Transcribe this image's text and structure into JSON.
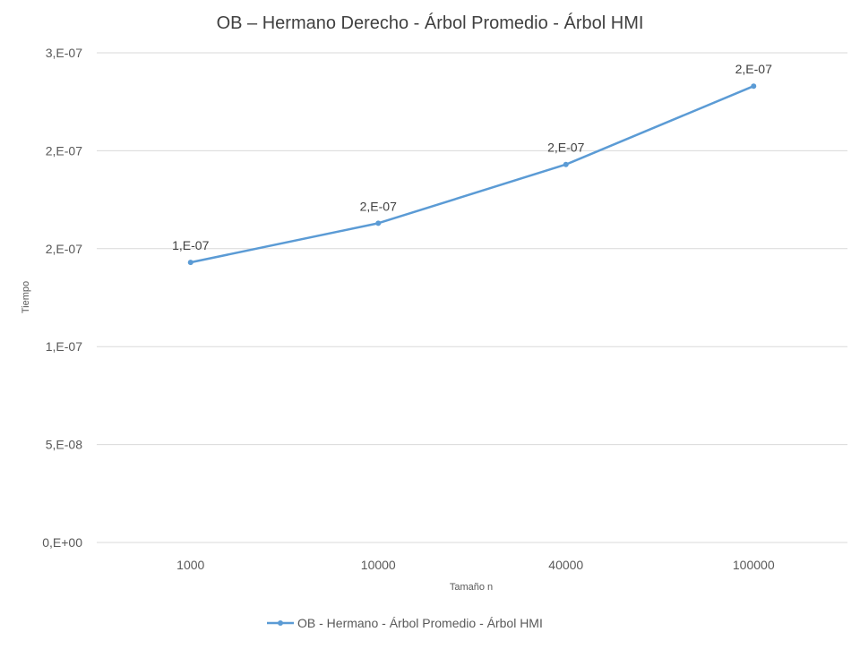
{
  "chart_data": {
    "type": "line",
    "title": "OB – Hermano Derecho  - Árbol Promedio - Árbol HMI",
    "xlabel": "Tamaño n",
    "ylabel": "Tiempo",
    "categories": [
      "1000",
      "10000",
      "40000",
      "100000"
    ],
    "series": [
      {
        "name": "OB - Hermano - Árbol Promedio - Árbol HMI",
        "values": [
          1.43e-07,
          1.63e-07,
          1.93e-07,
          2.33e-07
        ],
        "data_labels": [
          "1,E-07",
          "2,E-07",
          "2,E-07",
          "2,E-07"
        ],
        "color": "#5b9bd5"
      }
    ],
    "ylim": [
      0,
      2.5e-07
    ],
    "ytick_values": [
      0,
      5e-08,
      1e-07,
      1.5e-07,
      2e-07,
      2.5e-07
    ],
    "ytick_labels": [
      "0,E+00",
      "5,E-08",
      "1,E-07",
      "2,E-07",
      "2,E-07",
      "3,E-07"
    ],
    "grid": true,
    "legend_position": "bottom",
    "gridline_color": "#d9d9d9"
  }
}
